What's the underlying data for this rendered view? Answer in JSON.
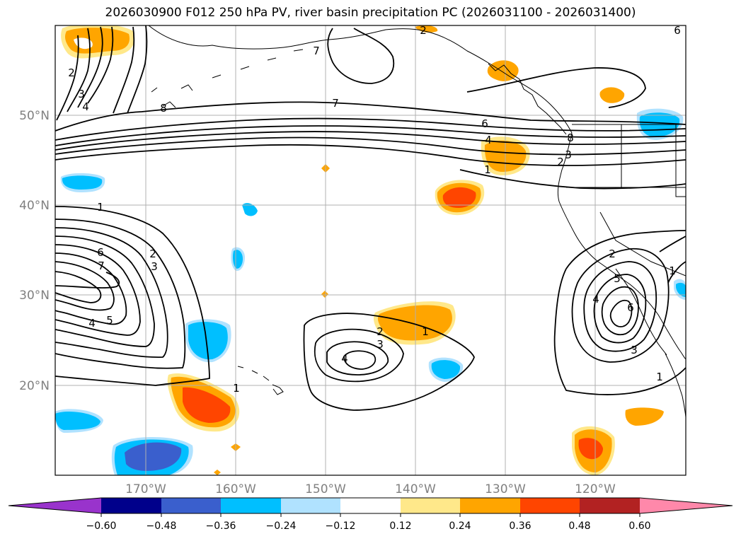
{
  "title": "2026030900 F012 250 hPa PV, river basin precipitation PC (2026031100 - 2026031400)",
  "lat_labels": [
    "50°N",
    "40°N",
    "30°N",
    "20°N"
  ],
  "lon_labels": [
    "170°W",
    "160°W",
    "150°W",
    "140°W",
    "130°W",
    "120°W"
  ],
  "colorbar": {
    "tick_labels": [
      "−0.60",
      "−0.48",
      "−0.36",
      "−0.24",
      "−0.12",
      "0.12",
      "0.24",
      "0.36",
      "0.48",
      "0.60"
    ],
    "colors": [
      "#9933cc",
      "#00008b",
      "#3a5fcd",
      "#00bfff",
      "#b0e2ff",
      "#ffffff",
      "#ffe88a",
      "#ffa500",
      "#ff4500",
      "#b22222",
      "#ff88aa"
    ]
  },
  "contour_labels": {
    "west_ridge": [
      "2",
      "3",
      "4",
      "8",
      "2",
      "7"
    ],
    "jet_band": [
      "7",
      "6",
      "4",
      "1",
      "3",
      "2",
      "8"
    ],
    "west_low": [
      "1",
      "6",
      "7",
      "2",
      "3",
      "4",
      "5"
    ],
    "central_low": [
      "2",
      "3",
      "4",
      "1",
      "1"
    ],
    "east_low": [
      "2",
      "5",
      "4",
      "6",
      "3",
      "1",
      "1"
    ],
    "corner": [
      "6"
    ]
  }
}
